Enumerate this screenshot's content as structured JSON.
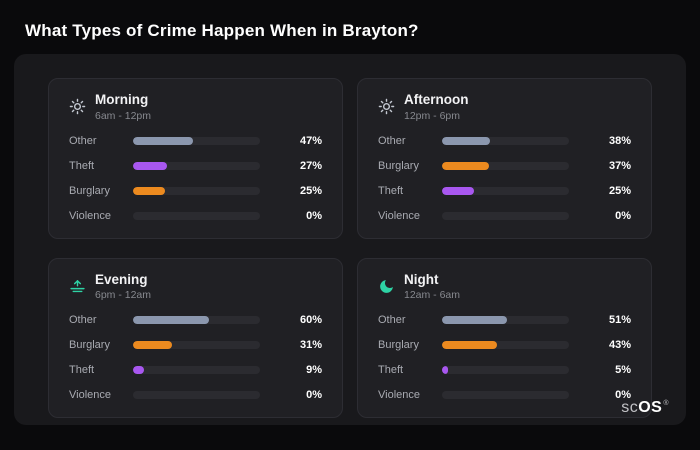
{
  "page": {
    "title": "What Types of Crime Happen When in Brayton?"
  },
  "brand": {
    "prefix": "sc",
    "suffix": "OS",
    "reg": "®"
  },
  "colors": {
    "other": "#8b97ae",
    "theft": "#a857f0",
    "burglary": "#ec8a1f",
    "icon_day": "#c3c8d1",
    "icon_night": "#2ed3a5",
    "track": "#2b2b30",
    "panel": "#19191c",
    "card": "#202024",
    "background": "#0a0a0c"
  },
  "cards": [
    {
      "id": "morning",
      "title": "Morning",
      "subtitle": "6am - 12pm",
      "icon": "sun-icon",
      "icon_color": "#c3c8d1",
      "rows": [
        {
          "label": "Other",
          "value": 47,
          "display": "47%",
          "color": "#8b97ae"
        },
        {
          "label": "Theft",
          "value": 27,
          "display": "27%",
          "color": "#a857f0"
        },
        {
          "label": "Burglary",
          "value": 25,
          "display": "25%",
          "color": "#ec8a1f"
        },
        {
          "label": "Violence",
          "value": 0,
          "display": "0%",
          "color": "#8b97ae"
        }
      ]
    },
    {
      "id": "afternoon",
      "title": "Afternoon",
      "subtitle": "12pm - 6pm",
      "icon": "sun-icon",
      "icon_color": "#c3c8d1",
      "rows": [
        {
          "label": "Other",
          "value": 38,
          "display": "38%",
          "color": "#8b97ae"
        },
        {
          "label": "Burglary",
          "value": 37,
          "display": "37%",
          "color": "#ec8a1f"
        },
        {
          "label": "Theft",
          "value": 25,
          "display": "25%",
          "color": "#a857f0"
        },
        {
          "label": "Violence",
          "value": 0,
          "display": "0%",
          "color": "#8b97ae"
        }
      ]
    },
    {
      "id": "evening",
      "title": "Evening",
      "subtitle": "6pm - 12am",
      "icon": "sunset-icon",
      "icon_color": "#2ed3a5",
      "rows": [
        {
          "label": "Other",
          "value": 60,
          "display": "60%",
          "color": "#8b97ae"
        },
        {
          "label": "Burglary",
          "value": 31,
          "display": "31%",
          "color": "#ec8a1f"
        },
        {
          "label": "Theft",
          "value": 9,
          "display": "9%",
          "color": "#a857f0"
        },
        {
          "label": "Violence",
          "value": 0,
          "display": "0%",
          "color": "#8b97ae"
        }
      ]
    },
    {
      "id": "night",
      "title": "Night",
      "subtitle": "12am - 6am",
      "icon": "moon-icon",
      "icon_color": "#2ed3a5",
      "rows": [
        {
          "label": "Other",
          "value": 51,
          "display": "51%",
          "color": "#8b97ae"
        },
        {
          "label": "Burglary",
          "value": 43,
          "display": "43%",
          "color": "#ec8a1f"
        },
        {
          "label": "Theft",
          "value": 5,
          "display": "5%",
          "color": "#a857f0"
        },
        {
          "label": "Violence",
          "value": 0,
          "display": "0%",
          "color": "#8b97ae"
        }
      ]
    }
  ],
  "chart_data": [
    {
      "type": "bar",
      "orientation": "horizontal",
      "title": "Morning",
      "subtitle": "6am - 12pm",
      "categories": [
        "Other",
        "Theft",
        "Burglary",
        "Violence"
      ],
      "values": [
        47,
        27,
        25,
        0
      ],
      "bar_colors": [
        "#8b97ae",
        "#a857f0",
        "#ec8a1f",
        "#8b97ae"
      ],
      "value_format": "percent",
      "xlim": [
        0,
        100
      ],
      "grid": false,
      "legend": false
    },
    {
      "type": "bar",
      "orientation": "horizontal",
      "title": "Afternoon",
      "subtitle": "12pm - 6pm",
      "categories": [
        "Other",
        "Burglary",
        "Theft",
        "Violence"
      ],
      "values": [
        38,
        37,
        25,
        0
      ],
      "bar_colors": [
        "#8b97ae",
        "#ec8a1f",
        "#a857f0",
        "#8b97ae"
      ],
      "value_format": "percent",
      "xlim": [
        0,
        100
      ],
      "grid": false,
      "legend": false
    },
    {
      "type": "bar",
      "orientation": "horizontal",
      "title": "Evening",
      "subtitle": "6pm - 12am",
      "categories": [
        "Other",
        "Burglary",
        "Theft",
        "Violence"
      ],
      "values": [
        60,
        31,
        9,
        0
      ],
      "bar_colors": [
        "#8b97ae",
        "#ec8a1f",
        "#a857f0",
        "#8b97ae"
      ],
      "value_format": "percent",
      "xlim": [
        0,
        100
      ],
      "grid": false,
      "legend": false
    },
    {
      "type": "bar",
      "orientation": "horizontal",
      "title": "Night",
      "subtitle": "12am - 6am",
      "categories": [
        "Other",
        "Burglary",
        "Theft",
        "Violence"
      ],
      "values": [
        51,
        43,
        5,
        0
      ],
      "bar_colors": [
        "#8b97ae",
        "#ec8a1f",
        "#a857f0",
        "#8b97ae"
      ],
      "value_format": "percent",
      "xlim": [
        0,
        100
      ],
      "grid": false,
      "legend": false
    }
  ]
}
